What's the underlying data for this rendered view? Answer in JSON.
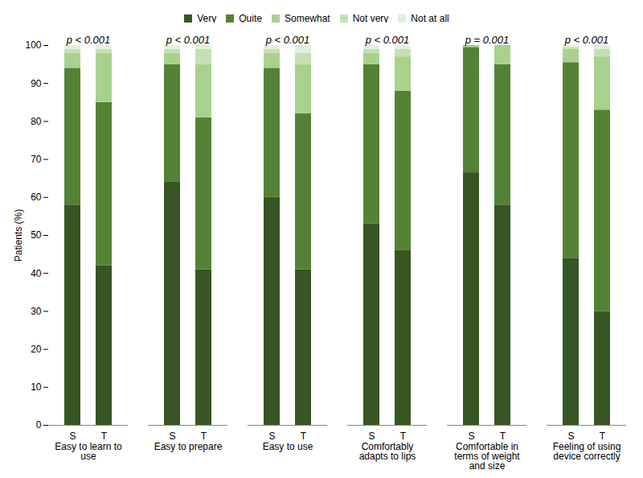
{
  "chart_data": {
    "type": "bar",
    "stacked": true,
    "y_label": "Patients (%)",
    "ylim": [
      0,
      100
    ],
    "yticks": [
      0,
      10,
      20,
      30,
      40,
      50,
      60,
      70,
      80,
      90,
      100
    ],
    "categories": [
      "Easy to learn to use",
      "Easy to prepare",
      "Easy to use",
      "Comfortably adapts to lips",
      "Comfortable in terms of weight and size",
      "Feeling of using device correctly"
    ],
    "bars": [
      "S",
      "T"
    ],
    "annotations": [
      "p < 0.001",
      "p < 0.001",
      "p < 0.001",
      "p < 0.001",
      "p = 0.001",
      "p < 0.001"
    ],
    "legend": "top",
    "series": [
      {
        "name": "Very",
        "color": "#375623",
        "values": [
          [
            58,
            42
          ],
          [
            64,
            41
          ],
          [
            60,
            41
          ],
          [
            53,
            46
          ],
          [
            66.5,
            58
          ],
          [
            44,
            30
          ]
        ]
      },
      {
        "name": "Quite",
        "color": "#548235",
        "values": [
          [
            36,
            43
          ],
          [
            31,
            40
          ],
          [
            34,
            41
          ],
          [
            42,
            42
          ],
          [
            33,
            37
          ],
          [
            51.5,
            53
          ]
        ]
      },
      {
        "name": "Somewhat",
        "color": "#a9d18e",
        "values": [
          [
            4,
            13
          ],
          [
            3,
            14
          ],
          [
            4,
            13
          ],
          [
            3,
            9
          ],
          [
            0.5,
            5
          ],
          [
            3.5,
            14
          ]
        ]
      },
      {
        "name": "Not very",
        "color": "#c5e0b4",
        "values": [
          [
            1,
            1
          ],
          [
            1,
            4
          ],
          [
            1,
            3
          ],
          [
            1,
            2
          ],
          [
            0,
            0
          ],
          [
            0.5,
            2
          ]
        ]
      },
      {
        "name": "Not at all",
        "color": "#e2f0d9",
        "values": [
          [
            1,
            1
          ],
          [
            1,
            1
          ],
          [
            1,
            2
          ],
          [
            1,
            1
          ],
          [
            0,
            0
          ],
          [
            0.5,
            1
          ]
        ]
      }
    ]
  }
}
